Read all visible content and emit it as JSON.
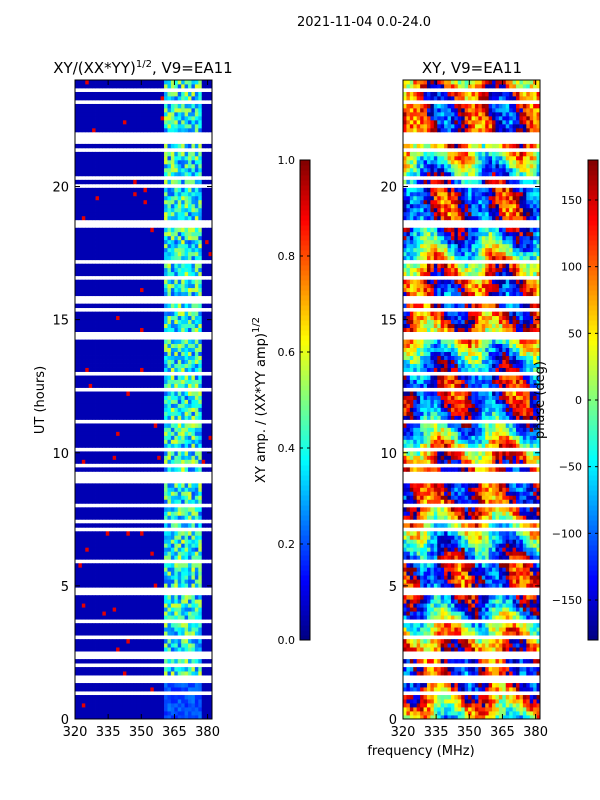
{
  "figure": {
    "suptitle": "2021-11-04 0.0-24.0",
    "xlabel": "frequency (MHz)"
  },
  "chart_data": [
    {
      "type": "heatmap",
      "title_main": "XY/(XX*YY)",
      "title_exp": "1/2",
      "title_tail": ", V9=EA11",
      "ylabel": "UT (hours)",
      "xlim": [
        320,
        382
      ],
      "ylim": [
        0,
        24
      ],
      "xticks": [
        320,
        335,
        350,
        365,
        380
      ],
      "yticks": [
        0,
        5,
        10,
        15,
        20
      ],
      "cbar_label_main": "XY amp. / (XX*YY amp)",
      "cbar_label_exp": "1/2",
      "cbar_range": [
        0.0,
        1.0
      ],
      "cbar_ticks": [
        "0.0",
        "0.2",
        "0.4",
        "0.6",
        "0.8",
        "1.0"
      ],
      "cbar_tick_values": [
        0.0,
        0.2,
        0.4,
        0.6,
        0.8,
        1.0
      ],
      "colormap": "jet",
      "background_value": 0.05,
      "signal_band_mhz": [
        360,
        378
      ],
      "signal_level": 0.4
    },
    {
      "type": "heatmap",
      "title_main": "XY, V9=EA11",
      "ylabel": "",
      "xlim": [
        320,
        382
      ],
      "ylim": [
        0,
        24
      ],
      "xticks": [
        320,
        335,
        350,
        365,
        380
      ],
      "yticks": [
        0,
        5,
        10,
        15,
        20
      ],
      "cbar_label_main": "phase (deg)",
      "cbar_range": [
        -180,
        180
      ],
      "cbar_ticks": [
        "150",
        "100",
        "50",
        "0",
        "−50",
        "−100",
        "−150"
      ],
      "cbar_tick_values": [
        150,
        100,
        50,
        0,
        -50,
        -100,
        -150
      ],
      "colormap": "jet"
    }
  ]
}
